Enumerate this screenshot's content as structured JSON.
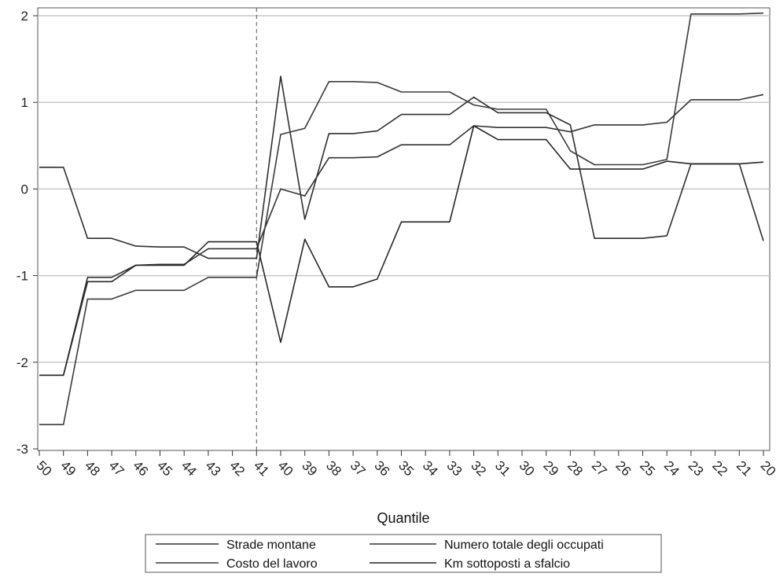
{
  "chart_data": {
    "type": "line",
    "xlabel": "Quantile",
    "ylim": [
      -3,
      2
    ],
    "yticks": [
      -3,
      -2,
      -1,
      0,
      1,
      2
    ],
    "grid": "horizontal",
    "vline_at": "41",
    "legend_position": "bottom",
    "categories": [
      "50",
      "49",
      "48",
      "47",
      "46",
      "45",
      "44",
      "43",
      "42",
      "41",
      "40",
      "39",
      "38",
      "37",
      "36",
      "35",
      "34",
      "33",
      "32",
      "31",
      "30",
      "29",
      "28",
      "27",
      "26",
      "25",
      "24",
      "23",
      "22",
      "21",
      "20"
    ],
    "series": [
      {
        "name": "Strade montane",
        "color": "#2f2f2f",
        "values": [
          0.25,
          0.25,
          -0.57,
          -0.57,
          -0.66,
          -0.67,
          -0.67,
          -0.8,
          -0.8,
          -0.8,
          1.3,
          -0.35,
          0.64,
          0.64,
          0.67,
          0.86,
          0.86,
          0.86,
          1.06,
          0.88,
          0.88,
          0.88,
          0.74,
          -0.57,
          -0.57,
          -0.57,
          -0.54,
          0.29,
          0.29,
          0.29,
          -0.6
        ]
      },
      {
        "name": "Numero totale degli occupati",
        "color": "#333333",
        "values": [
          -2.15,
          -2.15,
          -1.02,
          -1.02,
          -0.88,
          -0.87,
          -0.87,
          -0.69,
          -0.69,
          -0.69,
          0.0,
          -0.08,
          0.36,
          0.36,
          0.37,
          0.51,
          0.51,
          0.51,
          0.73,
          0.71,
          0.71,
          0.71,
          0.66,
          0.74,
          0.74,
          0.74,
          0.77,
          1.03,
          1.03,
          1.03,
          1.09
        ]
      },
      {
        "name": "Costo del lavoro",
        "color": "#3a3a3a",
        "values": [
          -2.72,
          -2.72,
          -1.27,
          -1.27,
          -1.17,
          -1.17,
          -1.17,
          -1.02,
          -1.02,
          -1.02,
          0.63,
          0.7,
          1.24,
          1.24,
          1.23,
          1.12,
          1.12,
          1.12,
          0.97,
          0.92,
          0.92,
          0.92,
          0.44,
          0.28,
          0.28,
          0.28,
          0.34,
          2.02,
          2.02,
          2.02,
          2.03
        ]
      },
      {
        "name": "Km sottoposti a sfalcio",
        "color": "#262626",
        "values": [
          -2.15,
          -2.15,
          -1.07,
          -1.07,
          -0.88,
          -0.88,
          -0.88,
          -0.61,
          -0.61,
          -0.61,
          -1.77,
          -0.58,
          -1.13,
          -1.13,
          -1.04,
          -0.38,
          -0.38,
          -0.38,
          0.73,
          0.57,
          0.57,
          0.57,
          0.23,
          0.23,
          0.23,
          0.23,
          0.32,
          0.29,
          0.29,
          0.29,
          0.31
        ]
      }
    ]
  }
}
